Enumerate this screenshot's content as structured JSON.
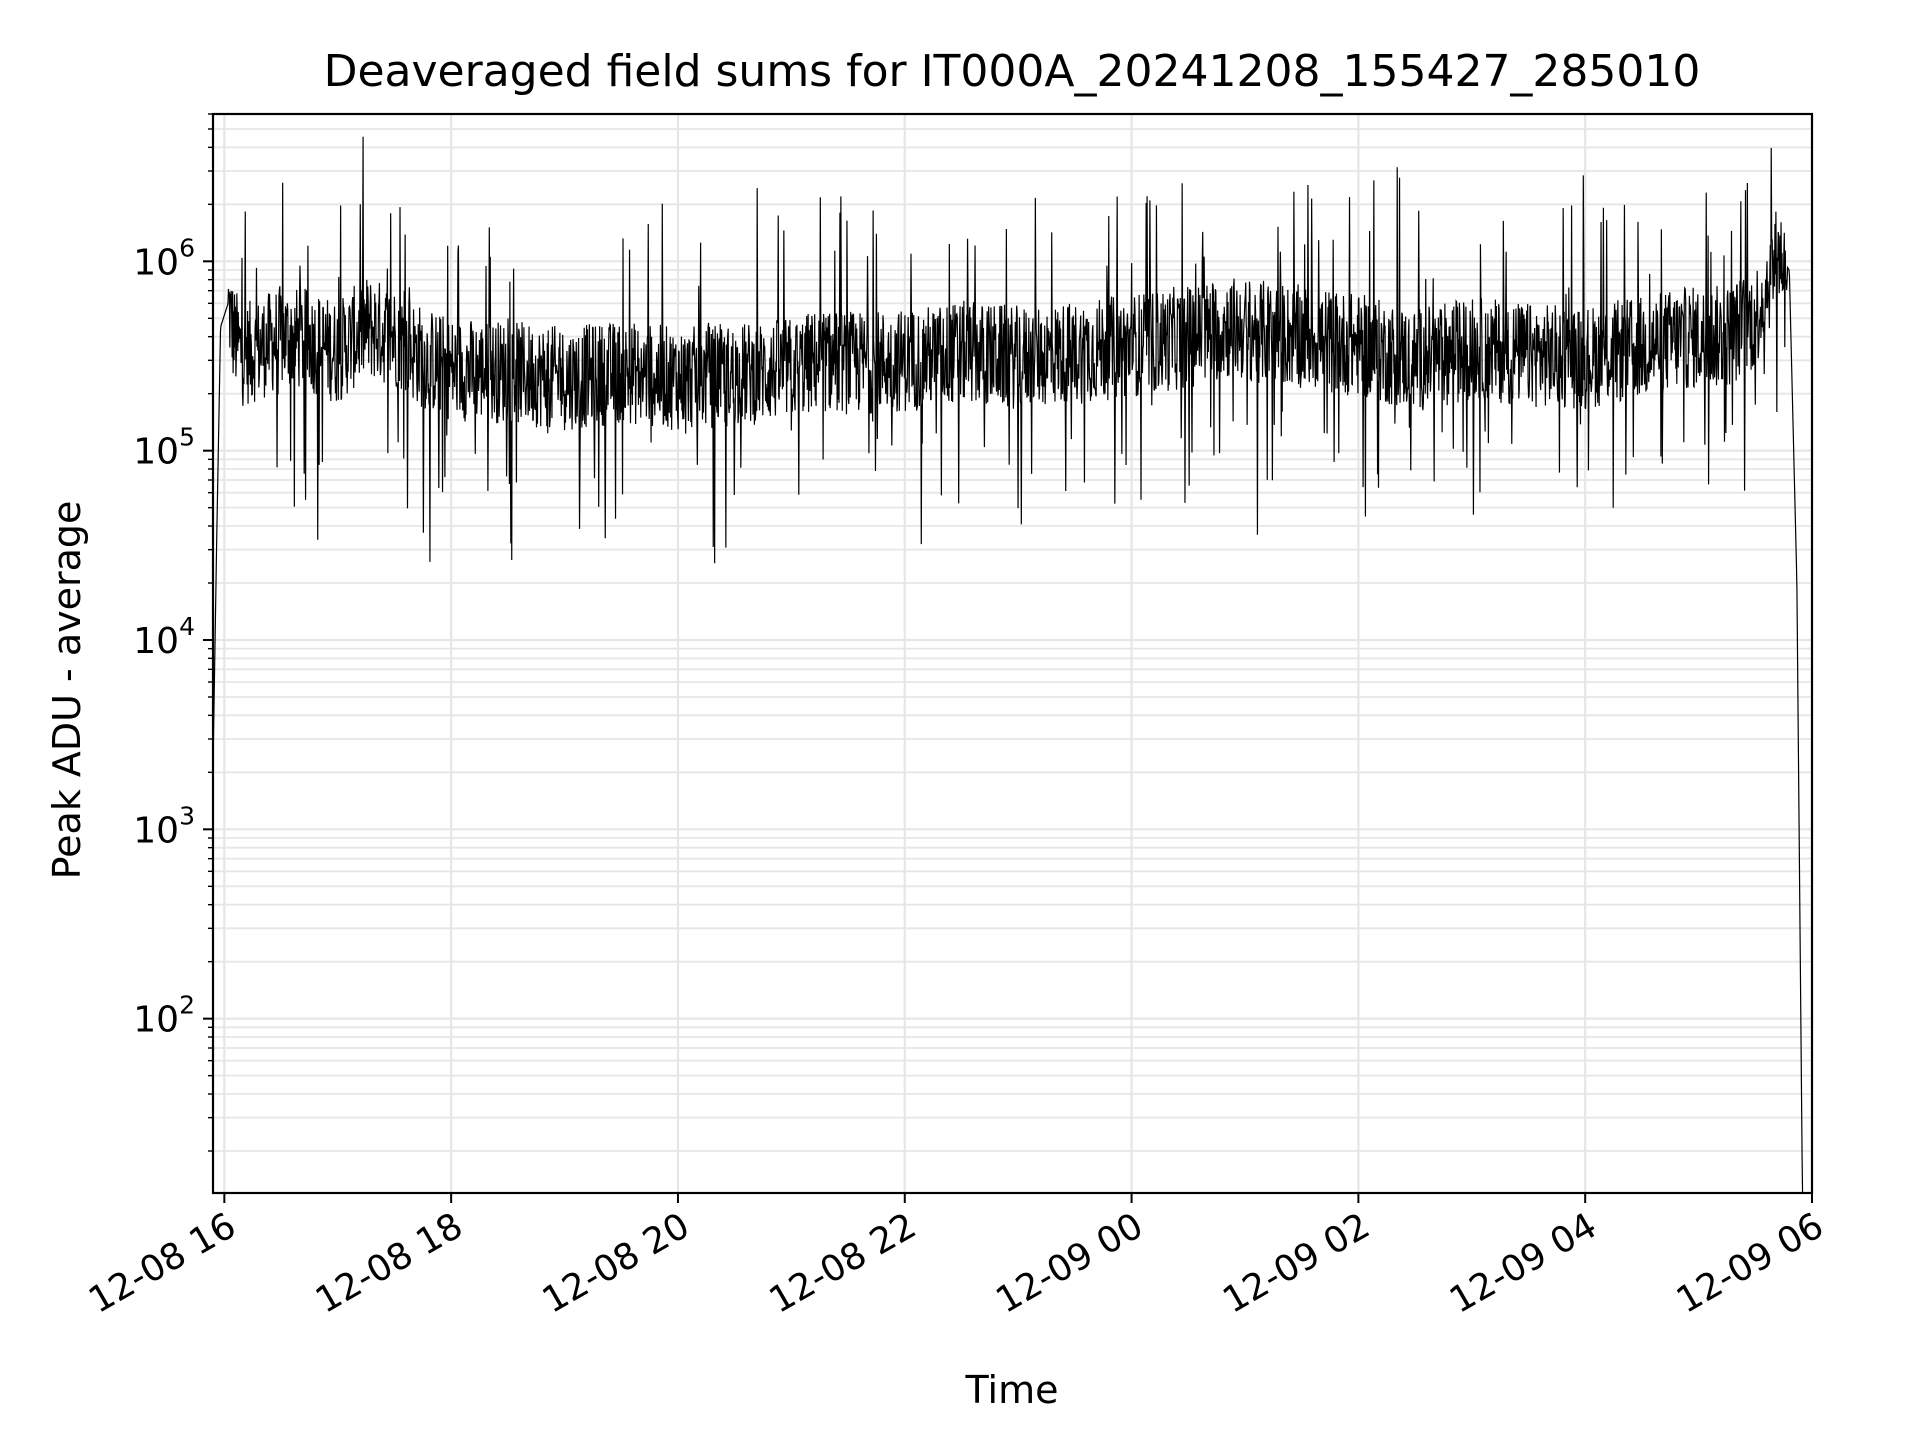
{
  "chart_data": {
    "type": "line",
    "title": "Deaveraged field sums for IT000A_20241208_155427_285010",
    "xlabel": "Time",
    "ylabel": "Peak ADU - average",
    "yscale": "log",
    "ylim": [
      12,
      6000000
    ],
    "xlim": [
      "2024-12-08 15:54",
      "2024-12-09 06:00"
    ],
    "grid": true,
    "line_color": "#000000",
    "grid_color": "#e6e6e6",
    "x_ticks": [
      {
        "value": "2024-12-08 16:00",
        "label": "12-08 16"
      },
      {
        "value": "2024-12-08 18:00",
        "label": "12-08 18"
      },
      {
        "value": "2024-12-08 20:00",
        "label": "12-08 20"
      },
      {
        "value": "2024-12-08 22:00",
        "label": "12-08 22"
      },
      {
        "value": "2024-12-09 00:00",
        "label": "12-09 00"
      },
      {
        "value": "2024-12-09 02:00",
        "label": "12-09 02"
      },
      {
        "value": "2024-12-09 04:00",
        "label": "12-09 04"
      },
      {
        "value": "2024-12-09 06:00",
        "label": "12-09 06"
      }
    ],
    "y_ticks": [
      {
        "value": 100,
        "base": "10",
        "exp": "2"
      },
      {
        "value": 1000,
        "base": "10",
        "exp": "3"
      },
      {
        "value": 10000,
        "base": "10",
        "exp": "4"
      },
      {
        "value": 100000,
        "base": "10",
        "exp": "5"
      },
      {
        "value": 1000000,
        "base": "10",
        "exp": "6"
      }
    ],
    "series": [
      {
        "x": [
          "2024-12-08 15:54",
          "2024-12-08 15:56",
          "2024-12-08 15:58",
          "2024-12-08 16:02",
          "2024-12-08 16:05",
          "2024-12-08 16:10",
          "2024-12-08 16:20",
          "2024-12-08 16:30",
          "2024-12-08 16:45",
          "2024-12-08 17:00",
          "2024-12-08 17:15",
          "2024-12-08 17:30",
          "2024-12-08 17:45",
          "2024-12-08 18:00",
          "2024-12-08 18:30",
          "2024-12-08 19:00",
          "2024-12-08 19:30",
          "2024-12-08 20:00",
          "2024-12-08 20:30",
          "2024-12-08 21:00",
          "2024-12-08 21:15",
          "2024-12-08 21:30",
          "2024-12-08 22:00",
          "2024-12-08 22:30",
          "2024-12-08 23:00",
          "2024-12-08 23:30",
          "2024-12-09 00:00",
          "2024-12-09 00:30",
          "2024-12-09 00:50",
          "2024-12-09 01:30",
          "2024-12-09 02:00",
          "2024-12-09 02:30",
          "2024-12-09 03:00",
          "2024-12-09 03:30",
          "2024-12-09 04:00",
          "2024-12-09 04:30",
          "2024-12-09 04:50",
          "2024-12-09 05:15",
          "2024-12-09 05:30",
          "2024-12-09 05:42",
          "2024-12-09 05:48",
          "2024-12-09 05:52",
          "2024-12-09 05:55"
        ],
        "y": [
          2100,
          36000,
          450000,
          600000,
          400000,
          320000,
          350000,
          400000,
          380000,
          330000,
          450000,
          400000,
          310000,
          270000,
          260000,
          240000,
          260000,
          240000,
          250000,
          270000,
          300000,
          290000,
          300000,
          330000,
          310000,
          330000,
          360000,
          400000,
          450000,
          400000,
          360000,
          300000,
          350000,
          320000,
          310000,
          350000,
          390000,
          400000,
          500000,
          1100000,
          900000,
          20000,
          10
        ]
      }
    ]
  }
}
